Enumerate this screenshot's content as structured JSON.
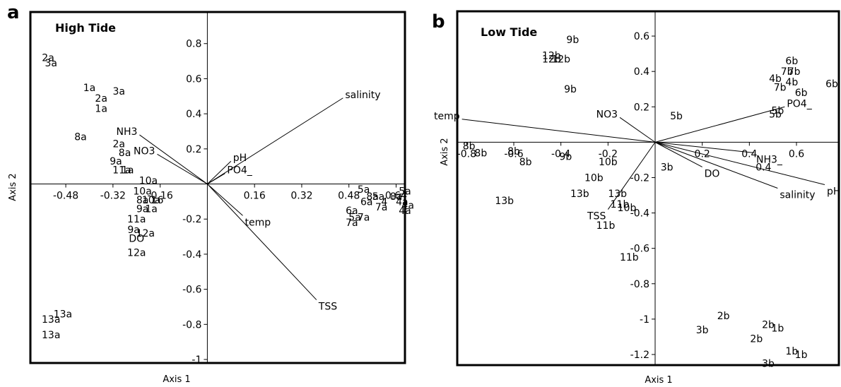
{
  "chart_data": [
    {
      "type": "scatter",
      "panel": "a",
      "title": "High Tide",
      "xlabel": "Axis 1",
      "ylabel": "Axis 2",
      "xlim": [
        -0.6,
        0.67
      ],
      "ylim": [
        -1.02,
        0.98
      ],
      "x_ticks": [
        {
          "value": -0.48,
          "label": "-0.48"
        },
        {
          "value": -0.32,
          "label": "-0.32"
        },
        {
          "value": -0.16,
          "label": "-0.16"
        },
        {
          "value": 0.16,
          "label": "0.16"
        },
        {
          "value": 0.32,
          "label": "0.32"
        },
        {
          "value": 0.48,
          "label": "0.48"
        },
        {
          "value": 0.64,
          "label": "0.64"
        }
      ],
      "y_ticks": [
        {
          "value": 0.8,
          "label": "0.8"
        },
        {
          "value": 0.6,
          "label": "0.6"
        },
        {
          "value": 0.4,
          "label": "0.4"
        },
        {
          "value": 0.2,
          "label": "0.2"
        },
        {
          "value": -0.2,
          "label": "-0.2"
        },
        {
          "value": -0.4,
          "label": "-0.4"
        },
        {
          "value": -0.6,
          "label": "-0.6"
        },
        {
          "value": -0.8,
          "label": "-0.8"
        },
        {
          "value": -1,
          "label": "-1"
        }
      ],
      "points": [
        {
          "label": "2a",
          "x": -0.54,
          "y": 0.72
        },
        {
          "label": "3a",
          "x": -0.53,
          "y": 0.69
        },
        {
          "label": "1a",
          "x": -0.4,
          "y": 0.55
        },
        {
          "label": "3a",
          "x": -0.3,
          "y": 0.53
        },
        {
          "label": "2a",
          "x": -0.36,
          "y": 0.49
        },
        {
          "label": "1a",
          "x": -0.36,
          "y": 0.43
        },
        {
          "label": "8a",
          "x": -0.43,
          "y": 0.27
        },
        {
          "label": "2a",
          "x": -0.3,
          "y": 0.23
        },
        {
          "label": "8a",
          "x": -0.28,
          "y": 0.18
        },
        {
          "label": "9a",
          "x": -0.31,
          "y": 0.13
        },
        {
          "label": "1a",
          "x": -0.27,
          "y": 0.08
        },
        {
          "label": "11a",
          "x": -0.29,
          "y": 0.08
        },
        {
          "label": "10a",
          "x": -0.2,
          "y": 0.02
        },
        {
          "label": "10a",
          "x": -0.22,
          "y": -0.04
        },
        {
          "label": "10a",
          "x": -0.19,
          "y": -0.09
        },
        {
          "label": "8a",
          "x": -0.22,
          "y": -0.09
        },
        {
          "label": "16",
          "x": -0.17,
          "y": -0.09
        },
        {
          "label": "9a",
          "x": -0.22,
          "y": -0.14
        },
        {
          "label": "1a",
          "x": -0.19,
          "y": -0.14
        },
        {
          "label": "11a",
          "x": -0.24,
          "y": -0.2
        },
        {
          "label": "9a",
          "x": -0.25,
          "y": -0.26
        },
        {
          "label": "12a",
          "x": -0.21,
          "y": -0.28
        },
        {
          "label": "DO",
          "x": -0.24,
          "y": -0.31
        },
        {
          "label": "12a",
          "x": -0.24,
          "y": -0.39
        },
        {
          "label": "5a",
          "x": 0.53,
          "y": -0.03
        },
        {
          "label": "8a",
          "x": 0.56,
          "y": -0.07
        },
        {
          "label": "5a",
          "x": 0.58,
          "y": -0.07
        },
        {
          "label": "6a",
          "x": 0.54,
          "y": -0.1
        },
        {
          "label": "4",
          "x": 0.6,
          "y": -0.1
        },
        {
          "label": "7a",
          "x": 0.59,
          "y": -0.13
        },
        {
          "label": "6a",
          "x": 0.49,
          "y": -0.15
        },
        {
          "label": "5a",
          "x": 0.5,
          "y": -0.19
        },
        {
          "label": "7a",
          "x": 0.53,
          "y": -0.19
        },
        {
          "label": "7a",
          "x": 0.49,
          "y": -0.22
        },
        {
          "label": "5a",
          "x": 0.67,
          "y": -0.04
        },
        {
          "label": "8a",
          "x": 0.64,
          "y": -0.07
        },
        {
          "label": "4a",
          "x": 0.66,
          "y": -0.1
        },
        {
          "label": "4a",
          "x": 0.68,
          "y": -0.12
        },
        {
          "label": "4a",
          "x": 0.67,
          "y": -0.15
        },
        {
          "label": "13a",
          "x": -0.49,
          "y": -0.74
        },
        {
          "label": "13a",
          "x": -0.53,
          "y": -0.77
        },
        {
          "label": "13a",
          "x": -0.53,
          "y": -0.86
        }
      ],
      "vectors": [
        {
          "label": "salinity",
          "x": 0.46,
          "y": 0.49
        },
        {
          "label": "NH3",
          "x": -0.23,
          "y": 0.28
        },
        {
          "label": "NO3",
          "x": -0.17,
          "y": 0.17
        },
        {
          "label": "pH",
          "x": 0.08,
          "y": 0.13
        },
        {
          "label": "PO4_",
          "x": 0.06,
          "y": 0.06
        },
        {
          "label": "temp",
          "x": 0.12,
          "y": -0.18
        },
        {
          "label": "TSS",
          "x": 0.37,
          "y": -0.66
        }
      ]
    },
    {
      "type": "scatter",
      "panel": "b",
      "title": "Low Tide",
      "xlabel": "Axis 1",
      "ylabel": "Axis 2",
      "xlim": [
        -0.84,
        0.78
      ],
      "ylim": [
        -1.26,
        0.74
      ],
      "x_ticks": [
        {
          "value": -0.8,
          "label": "-0.8"
        },
        {
          "value": -0.6,
          "label": "-0.6"
        },
        {
          "value": -0.4,
          "label": "-0.4"
        },
        {
          "value": -0.2,
          "label": "-0.2"
        },
        {
          "value": 0.2,
          "label": "0.2"
        },
        {
          "value": 0.4,
          "label": "0.4"
        },
        {
          "value": 0.6,
          "label": "0.6"
        }
      ],
      "y_ticks": [
        {
          "value": 0.6,
          "label": "0.6"
        },
        {
          "value": 0.4,
          "label": "0.4"
        },
        {
          "value": 0.2,
          "label": "0.2"
        },
        {
          "value": -0.2,
          "label": "-0.2"
        },
        {
          "value": -0.4,
          "label": "-0.4"
        },
        {
          "value": -0.6,
          "label": "-0.6"
        },
        {
          "value": -0.8,
          "label": "-0.8"
        },
        {
          "value": -1,
          "label": "-1"
        },
        {
          "value": -1.2,
          "label": "-1.2"
        }
      ],
      "points": [
        {
          "label": "9b",
          "x": -0.35,
          "y": 0.58
        },
        {
          "label": "12b",
          "x": -0.44,
          "y": 0.49
        },
        {
          "label": "12b",
          "x": -0.4,
          "y": 0.47
        },
        {
          "label": "12b",
          "x": -0.44,
          "y": 0.47
        },
        {
          "label": "9b",
          "x": -0.36,
          "y": 0.3
        },
        {
          "label": "6b",
          "x": 0.58,
          "y": 0.46
        },
        {
          "label": "7b",
          "x": 0.56,
          "y": 0.4
        },
        {
          "label": "7b",
          "x": 0.59,
          "y": 0.4
        },
        {
          "label": "4b",
          "x": 0.51,
          "y": 0.36
        },
        {
          "label": "4b",
          "x": 0.58,
          "y": 0.34
        },
        {
          "label": "6b",
          "x": 0.75,
          "y": 0.33
        },
        {
          "label": "7b",
          "x": 0.53,
          "y": 0.31
        },
        {
          "label": "6b",
          "x": 0.62,
          "y": 0.28
        },
        {
          "label": "5b",
          "x": 0.52,
          "y": 0.18
        },
        {
          "label": "5b",
          "x": 0.51,
          "y": 0.16
        },
        {
          "label": "5b",
          "x": 0.09,
          "y": 0.15
        },
        {
          "label": "8b",
          "x": -0.79,
          "y": -0.02
        },
        {
          "label": "8b",
          "x": -0.74,
          "y": -0.06
        },
        {
          "label": "8b",
          "x": -0.55,
          "y": -0.11
        },
        {
          "label": "8b",
          "x": -0.6,
          "y": -0.05
        },
        {
          "label": "9b",
          "x": -0.38,
          "y": -0.08
        },
        {
          "label": "10b",
          "x": -0.26,
          "y": -0.2
        },
        {
          "label": "10b",
          "x": -0.2,
          "y": -0.11
        },
        {
          "label": "13b",
          "x": -0.32,
          "y": -0.29
        },
        {
          "label": "13b",
          "x": -0.16,
          "y": -0.29
        },
        {
          "label": "11b",
          "x": -0.15,
          "y": -0.35
        },
        {
          "label": "10b",
          "x": -0.12,
          "y": -0.37
        },
        {
          "label": "11b",
          "x": -0.21,
          "y": -0.47
        },
        {
          "label": "11b",
          "x": -0.11,
          "y": -0.65
        },
        {
          "label": "13b",
          "x": -0.64,
          "y": -0.33
        },
        {
          "label": "3b",
          "x": 0.05,
          "y": -0.14
        },
        {
          "label": "2b",
          "x": 0.29,
          "y": -0.98
        },
        {
          "label": "2b",
          "x": 0.43,
          "y": -1.11
        },
        {
          "label": "3b",
          "x": 0.2,
          "y": -1.06
        },
        {
          "label": "2b",
          "x": 0.48,
          "y": -1.03
        },
        {
          "label": "1b",
          "x": 0.52,
          "y": -1.05
        },
        {
          "label": "1b",
          "x": 0.58,
          "y": -1.18
        },
        {
          "label": "1b",
          "x": 0.62,
          "y": -1.2
        },
        {
          "label": "3b",
          "x": 0.48,
          "y": -1.25
        },
        {
          "label": "0.4",
          "x": 0.46,
          "y": -0.14
        }
      ],
      "vectors": [
        {
          "label": "temp",
          "x": -0.82,
          "y": 0.13
        },
        {
          "label": "NO3",
          "x": -0.15,
          "y": 0.14
        },
        {
          "label": "PO4_",
          "x": 0.55,
          "y": 0.2
        },
        {
          "label": "NH3_",
          "x": 0.42,
          "y": -0.06
        },
        {
          "label": "DO",
          "x": 0.2,
          "y": -0.14
        },
        {
          "label": "salinity",
          "x": 0.52,
          "y": -0.26
        },
        {
          "label": "pH",
          "x": 0.72,
          "y": -0.24
        },
        {
          "label": "TSS",
          "x": -0.2,
          "y": -0.38
        }
      ]
    }
  ],
  "colors": {
    "ink": "#000000",
    "background": "#ffffff"
  }
}
